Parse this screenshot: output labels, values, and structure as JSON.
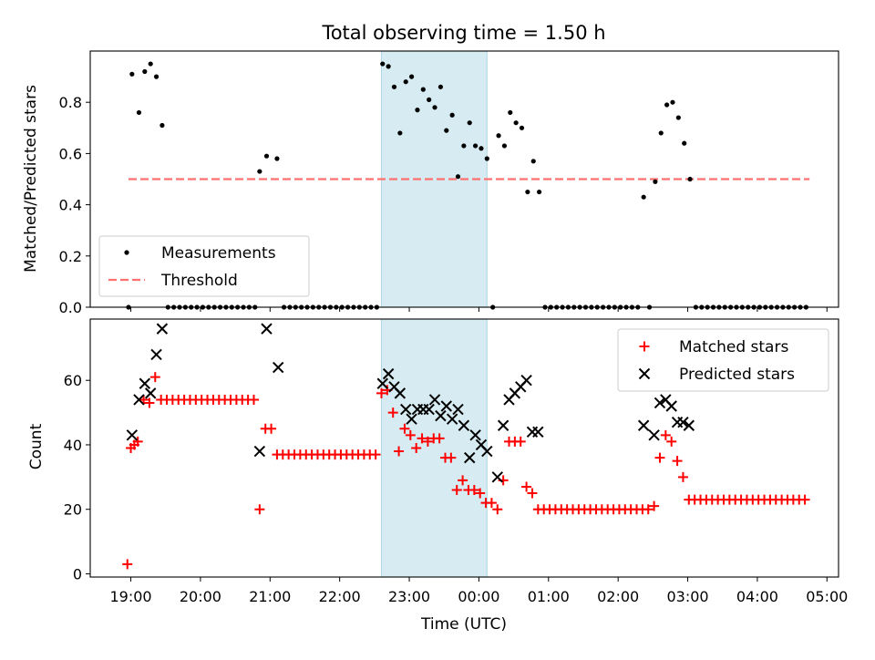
{
  "chart_data": [
    {
      "type": "scatter",
      "title": "Total observing time = 1.50 h",
      "ylabel": "Matched/Predicted stars",
      "xlabel": "",
      "ylim": [
        0,
        1.0
      ],
      "yticks": [
        "0.0",
        "0.2",
        "0.4",
        "0.6",
        "0.8"
      ],
      "shaded_span": [
        "22:36",
        "24:07"
      ],
      "legend": {
        "position": "lower-left",
        "measurements": "Measurements",
        "threshold": "Threshold"
      },
      "threshold": {
        "value": 0.5,
        "from": "18:58",
        "to": "28:45",
        "color": "#ff7070"
      },
      "measurements_color": "#000000",
      "points": [
        [
          "18:58",
          0
        ],
        [
          "19:01",
          0.91
        ],
        [
          "19:07",
          0.76
        ],
        [
          "19:12",
          0.92
        ],
        [
          "19:17",
          0.95
        ],
        [
          "19:22",
          0.9
        ],
        [
          "19:27",
          0.71
        ],
        [
          "19:32",
          0
        ],
        [
          "19:37",
          0
        ],
        [
          "19:42",
          0
        ],
        [
          "19:47",
          0
        ],
        [
          "19:52",
          0
        ],
        [
          "19:57",
          0
        ],
        [
          "20:02",
          0
        ],
        [
          "20:07",
          0
        ],
        [
          "20:12",
          0
        ],
        [
          "20:17",
          0
        ],
        [
          "20:22",
          0
        ],
        [
          "20:27",
          0
        ],
        [
          "20:32",
          0
        ],
        [
          "20:37",
          0
        ],
        [
          "20:42",
          0
        ],
        [
          "20:47",
          0
        ],
        [
          "20:51",
          0.53
        ],
        [
          "20:57",
          0.59
        ],
        [
          "21:06",
          0.58
        ],
        [
          "21:12",
          0
        ],
        [
          "21:17",
          0
        ],
        [
          "21:22",
          0
        ],
        [
          "21:27",
          0
        ],
        [
          "21:32",
          0
        ],
        [
          "21:37",
          0
        ],
        [
          "21:42",
          0
        ],
        [
          "21:47",
          0
        ],
        [
          "21:52",
          0
        ],
        [
          "21:57",
          0
        ],
        [
          "22:02",
          0
        ],
        [
          "22:07",
          0
        ],
        [
          "22:12",
          0
        ],
        [
          "22:17",
          0
        ],
        [
          "22:22",
          0
        ],
        [
          "22:27",
          0
        ],
        [
          "22:32",
          0
        ],
        [
          "22:37",
          0.95
        ],
        [
          "22:42",
          0.94
        ],
        [
          "22:47",
          0.86
        ],
        [
          "22:52",
          0.68
        ],
        [
          "22:57",
          0.88
        ],
        [
          "23:02",
          0.9
        ],
        [
          "23:07",
          0.77
        ],
        [
          "23:12",
          0.85
        ],
        [
          "23:17",
          0.81
        ],
        [
          "23:22",
          0.78
        ],
        [
          "23:27",
          0.86
        ],
        [
          "23:32",
          0.69
        ],
        [
          "23:37",
          0.75
        ],
        [
          "23:42",
          0.51
        ],
        [
          "23:47",
          0.63
        ],
        [
          "23:52",
          0.72
        ],
        [
          "23:57",
          0.63
        ],
        [
          "24:02",
          0.62
        ],
        [
          "24:07",
          0.58
        ],
        [
          "24:12",
          0
        ],
        [
          "24:17",
          0.67
        ],
        [
          "24:22",
          0.63
        ],
        [
          "24:27",
          0.76
        ],
        [
          "24:32",
          0.72
        ],
        [
          "24:37",
          0.7
        ],
        [
          "24:42",
          0.45
        ],
        [
          "24:47",
          0.57
        ],
        [
          "24:52",
          0.45
        ],
        [
          "24:57",
          0
        ],
        [
          "25:02",
          0
        ],
        [
          "25:07",
          0
        ],
        [
          "25:12",
          0
        ],
        [
          "25:17",
          0
        ],
        [
          "25:22",
          0
        ],
        [
          "25:27",
          0
        ],
        [
          "25:32",
          0
        ],
        [
          "25:37",
          0
        ],
        [
          "25:42",
          0
        ],
        [
          "25:47",
          0
        ],
        [
          "25:52",
          0
        ],
        [
          "25:57",
          0
        ],
        [
          "26:02",
          0
        ],
        [
          "26:07",
          0
        ],
        [
          "26:12",
          0
        ],
        [
          "26:17",
          0
        ],
        [
          "26:22",
          0.43
        ],
        [
          "26:27",
          0
        ],
        [
          "26:32",
          0.49
        ],
        [
          "26:37",
          0.68
        ],
        [
          "26:42",
          0.79
        ],
        [
          "26:47",
          0.8
        ],
        [
          "26:52",
          0.74
        ],
        [
          "26:57",
          0.64
        ],
        [
          "27:02",
          0.5
        ],
        [
          "27:07",
          0
        ],
        [
          "27:12",
          0
        ],
        [
          "27:17",
          0
        ],
        [
          "27:22",
          0
        ],
        [
          "27:27",
          0
        ],
        [
          "27:32",
          0
        ],
        [
          "27:37",
          0
        ],
        [
          "27:42",
          0
        ],
        [
          "27:47",
          0
        ],
        [
          "27:52",
          0
        ],
        [
          "27:57",
          0
        ],
        [
          "28:02",
          0
        ],
        [
          "28:07",
          0
        ],
        [
          "28:12",
          0
        ],
        [
          "28:17",
          0
        ],
        [
          "28:22",
          0
        ],
        [
          "28:27",
          0
        ],
        [
          "28:32",
          0
        ],
        [
          "28:37",
          0
        ],
        [
          "28:42",
          0
        ]
      ]
    },
    {
      "type": "scatter",
      "title": "",
      "ylabel": "Count",
      "xlabel": "Time (UTC)",
      "ylim": [
        -1,
        79
      ],
      "xlim": [
        "18:25",
        "29:10"
      ],
      "yticks": [
        "0",
        "20",
        "40",
        "60"
      ],
      "xticks": [
        "19:00",
        "20:00",
        "21:00",
        "22:00",
        "23:00",
        "00:00",
        "01:00",
        "02:00",
        "03:00",
        "04:00",
        "05:00"
      ],
      "shaded_span": [
        "22:36",
        "24:07"
      ],
      "legend": {
        "position": "top-right",
        "matched": "Matched stars",
        "predicted": "Predicted stars"
      },
      "matched_color": "#ff0000",
      "predicted_color": "#000000",
      "matched": [
        [
          "18:57",
          3
        ],
        [
          "19:00",
          39
        ],
        [
          "19:03",
          40
        ],
        [
          "19:06",
          41
        ],
        [
          "19:11",
          54
        ],
        [
          "19:16",
          53
        ],
        [
          "19:21",
          61
        ],
        [
          "19:26",
          54
        ],
        [
          "19:31",
          54
        ],
        [
          "19:36",
          54
        ],
        [
          "19:41",
          54
        ],
        [
          "19:46",
          54
        ],
        [
          "19:51",
          54
        ],
        [
          "19:56",
          54
        ],
        [
          "20:01",
          54
        ],
        [
          "20:06",
          54
        ],
        [
          "20:11",
          54
        ],
        [
          "20:16",
          54
        ],
        [
          "20:21",
          54
        ],
        [
          "20:26",
          54
        ],
        [
          "20:31",
          54
        ],
        [
          "20:36",
          54
        ],
        [
          "20:41",
          54
        ],
        [
          "20:46",
          54
        ],
        [
          "20:51",
          20
        ],
        [
          "20:56",
          45
        ],
        [
          "21:01",
          45
        ],
        [
          "21:06",
          37
        ],
        [
          "21:11",
          37
        ],
        [
          "21:16",
          37
        ],
        [
          "21:21",
          37
        ],
        [
          "21:26",
          37
        ],
        [
          "21:31",
          37
        ],
        [
          "21:36",
          37
        ],
        [
          "21:41",
          37
        ],
        [
          "21:46",
          37
        ],
        [
          "21:51",
          37
        ],
        [
          "21:56",
          37
        ],
        [
          "22:01",
          37
        ],
        [
          "22:06",
          37
        ],
        [
          "22:11",
          37
        ],
        [
          "22:16",
          37
        ],
        [
          "22:21",
          37
        ],
        [
          "22:26",
          37
        ],
        [
          "22:31",
          37
        ],
        [
          "22:36",
          56
        ],
        [
          "22:41",
          57
        ],
        [
          "22:46",
          50
        ],
        [
          "22:51",
          38
        ],
        [
          "22:56",
          45
        ],
        [
          "23:01",
          43
        ],
        [
          "23:06",
          39
        ],
        [
          "23:11",
          42
        ],
        [
          "23:16",
          41
        ],
        [
          "23:21",
          42
        ],
        [
          "23:26",
          42
        ],
        [
          "23:31",
          36
        ],
        [
          "23:36",
          36
        ],
        [
          "23:41",
          26
        ],
        [
          "23:46",
          29
        ],
        [
          "23:51",
          26
        ],
        [
          "23:56",
          26
        ],
        [
          "24:01",
          25
        ],
        [
          "24:06",
          22
        ],
        [
          "24:11",
          22
        ],
        [
          "24:16",
          20
        ],
        [
          "24:21",
          29
        ],
        [
          "24:26",
          41
        ],
        [
          "24:31",
          41
        ],
        [
          "24:36",
          41
        ],
        [
          "24:41",
          27
        ],
        [
          "24:46",
          25
        ],
        [
          "24:51",
          20
        ],
        [
          "24:56",
          20
        ],
        [
          "25:01",
          20
        ],
        [
          "25:06",
          20
        ],
        [
          "25:11",
          20
        ],
        [
          "25:16",
          20
        ],
        [
          "25:21",
          20
        ],
        [
          "25:26",
          20
        ],
        [
          "25:31",
          20
        ],
        [
          "25:36",
          20
        ],
        [
          "25:41",
          20
        ],
        [
          "25:46",
          20
        ],
        [
          "25:51",
          20
        ],
        [
          "25:56",
          20
        ],
        [
          "26:01",
          20
        ],
        [
          "26:06",
          20
        ],
        [
          "26:11",
          20
        ],
        [
          "26:16",
          20
        ],
        [
          "26:21",
          20
        ],
        [
          "26:26",
          20
        ],
        [
          "26:31",
          21
        ],
        [
          "26:36",
          36
        ],
        [
          "26:41",
          43
        ],
        [
          "26:46",
          41
        ],
        [
          "26:51",
          35
        ],
        [
          "26:56",
          30
        ],
        [
          "27:01",
          23
        ],
        [
          "27:06",
          23
        ],
        [
          "27:11",
          23
        ],
        [
          "27:16",
          23
        ],
        [
          "27:21",
          23
        ],
        [
          "27:26",
          23
        ],
        [
          "27:31",
          23
        ],
        [
          "27:36",
          23
        ],
        [
          "27:41",
          23
        ],
        [
          "27:46",
          23
        ],
        [
          "27:51",
          23
        ],
        [
          "27:56",
          23
        ],
        [
          "28:01",
          23
        ],
        [
          "28:06",
          23
        ],
        [
          "28:11",
          23
        ],
        [
          "28:16",
          23
        ],
        [
          "28:21",
          23
        ],
        [
          "28:26",
          23
        ],
        [
          "28:31",
          23
        ],
        [
          "28:36",
          23
        ],
        [
          "28:41",
          23
        ]
      ],
      "predicted": [
        [
          "19:01",
          43
        ],
        [
          "19:07",
          54
        ],
        [
          "19:12",
          59
        ],
        [
          "19:17",
          56
        ],
        [
          "19:22",
          68
        ],
        [
          "19:27",
          76
        ],
        [
          "20:51",
          38
        ],
        [
          "20:57",
          76
        ],
        [
          "21:07",
          64
        ],
        [
          "22:37",
          59
        ],
        [
          "22:42",
          62
        ],
        [
          "22:47",
          58
        ],
        [
          "22:52",
          56
        ],
        [
          "22:57",
          51
        ],
        [
          "23:02",
          48
        ],
        [
          "23:07",
          51
        ],
        [
          "23:12",
          51
        ],
        [
          "23:17",
          51
        ],
        [
          "23:22",
          54
        ],
        [
          "23:27",
          49
        ],
        [
          "23:32",
          52
        ],
        [
          "23:37",
          48
        ],
        [
          "23:42",
          51
        ],
        [
          "23:47",
          46
        ],
        [
          "23:52",
          36
        ],
        [
          "23:57",
          43
        ],
        [
          "24:02",
          40
        ],
        [
          "24:07",
          38
        ],
        [
          "24:16",
          30
        ],
        [
          "24:21",
          46
        ],
        [
          "24:26",
          54
        ],
        [
          "24:31",
          56
        ],
        [
          "24:36",
          58
        ],
        [
          "24:41",
          60
        ],
        [
          "24:46",
          44
        ],
        [
          "24:51",
          44
        ],
        [
          "26:22",
          46
        ],
        [
          "26:31",
          43
        ],
        [
          "26:36",
          53
        ],
        [
          "26:41",
          54
        ],
        [
          "26:46",
          52
        ],
        [
          "26:51",
          47
        ],
        [
          "26:56",
          47
        ],
        [
          "27:01",
          46
        ]
      ]
    }
  ]
}
